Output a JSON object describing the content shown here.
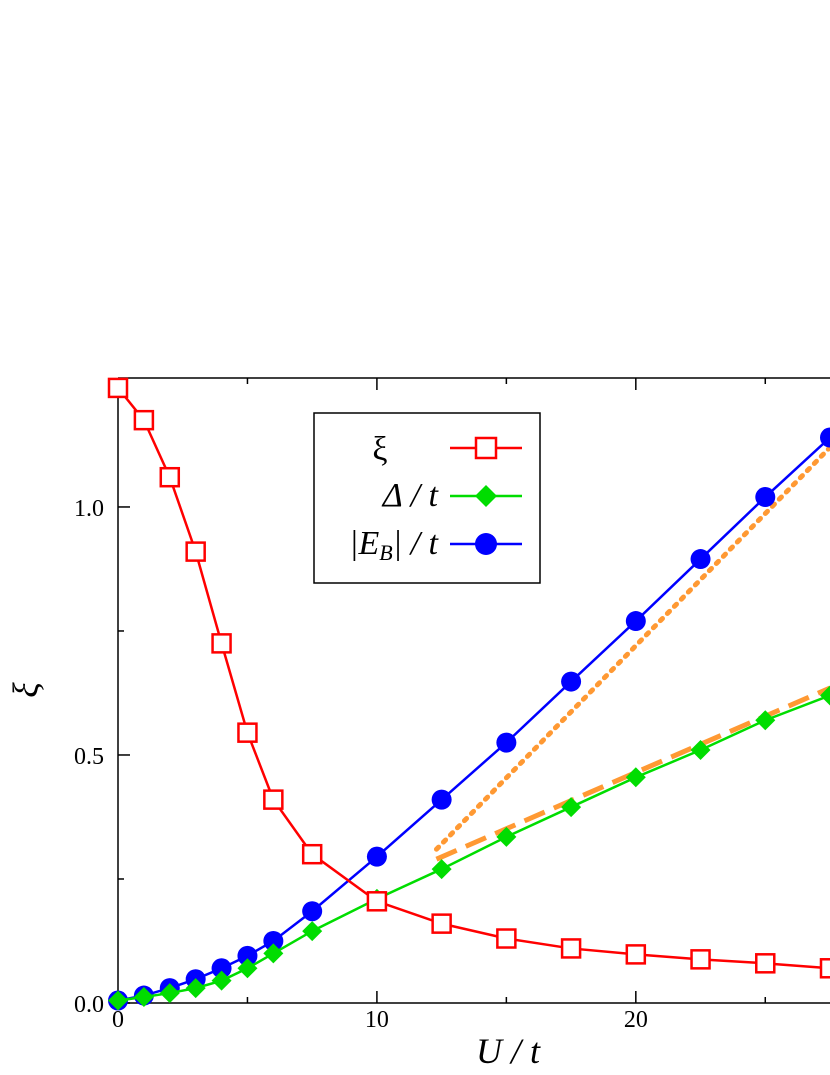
{
  "chart_data": {
    "type": "line",
    "xlabel": "U / t",
    "ylabel": "ξ",
    "xlim": [
      0,
      27.5
    ],
    "ylim": [
      0,
      1.26
    ],
    "xticks": [
      "0",
      "10",
      "20"
    ],
    "yticks": [
      "0.0",
      "0.5",
      "1.0"
    ],
    "xtick_values": [
      0,
      10,
      20
    ],
    "ytick_values": [
      0,
      0.5,
      1.0
    ],
    "legend_position": "top-center",
    "series": [
      {
        "name": "ξ",
        "marker": "open-square",
        "color": "#ff0000",
        "x": [
          0,
          1,
          2,
          3,
          4,
          5,
          6,
          7.5,
          10,
          12.5,
          15,
          17.5,
          20,
          22.5,
          25,
          27.5
        ],
        "y": [
          1.24,
          1.175,
          1.06,
          0.91,
          0.725,
          0.545,
          0.41,
          0.3,
          0.205,
          0.16,
          0.13,
          0.11,
          0.098,
          0.088,
          0.08,
          0.07
        ]
      },
      {
        "name": "Δ / t",
        "marker": "filled-diamond",
        "color": "#00dd00",
        "x": [
          0,
          1,
          2,
          3,
          4,
          5,
          6,
          7.5,
          10,
          12.5,
          15,
          17.5,
          20,
          22.5,
          25,
          27.5
        ],
        "y": [
          0.005,
          0.012,
          0.02,
          0.03,
          0.045,
          0.07,
          0.1,
          0.145,
          0.21,
          0.27,
          0.335,
          0.395,
          0.455,
          0.51,
          0.57,
          0.62
        ]
      },
      {
        "name": "|E_B| / t",
        "marker": "filled-circle",
        "color": "#0000ff",
        "x": [
          0,
          1,
          2,
          3,
          4,
          5,
          6,
          7.5,
          10,
          12.5,
          15,
          17.5,
          20,
          22.5,
          25,
          27.5
        ],
        "y": [
          0.005,
          0.015,
          0.03,
          0.048,
          0.07,
          0.095,
          0.125,
          0.185,
          0.295,
          0.41,
          0.525,
          0.648,
          0.77,
          0.895,
          1.02,
          1.14
        ]
      }
    ],
    "guides": [
      {
        "style": "dashed",
        "color": "#ff9933",
        "x": [
          12.3,
          27.5
        ],
        "y": [
          0.29,
          0.635
        ]
      },
      {
        "style": "dotted",
        "color": "#ff9933",
        "x": [
          12.3,
          27.5
        ],
        "y": [
          0.31,
          1.12
        ]
      }
    ]
  },
  "legend": {
    "label_xi": "ξ",
    "label_delta": "Δ / t",
    "label_eb_main": "E",
    "label_eb_sub": "B",
    "label_eb_tail": "/ t"
  }
}
